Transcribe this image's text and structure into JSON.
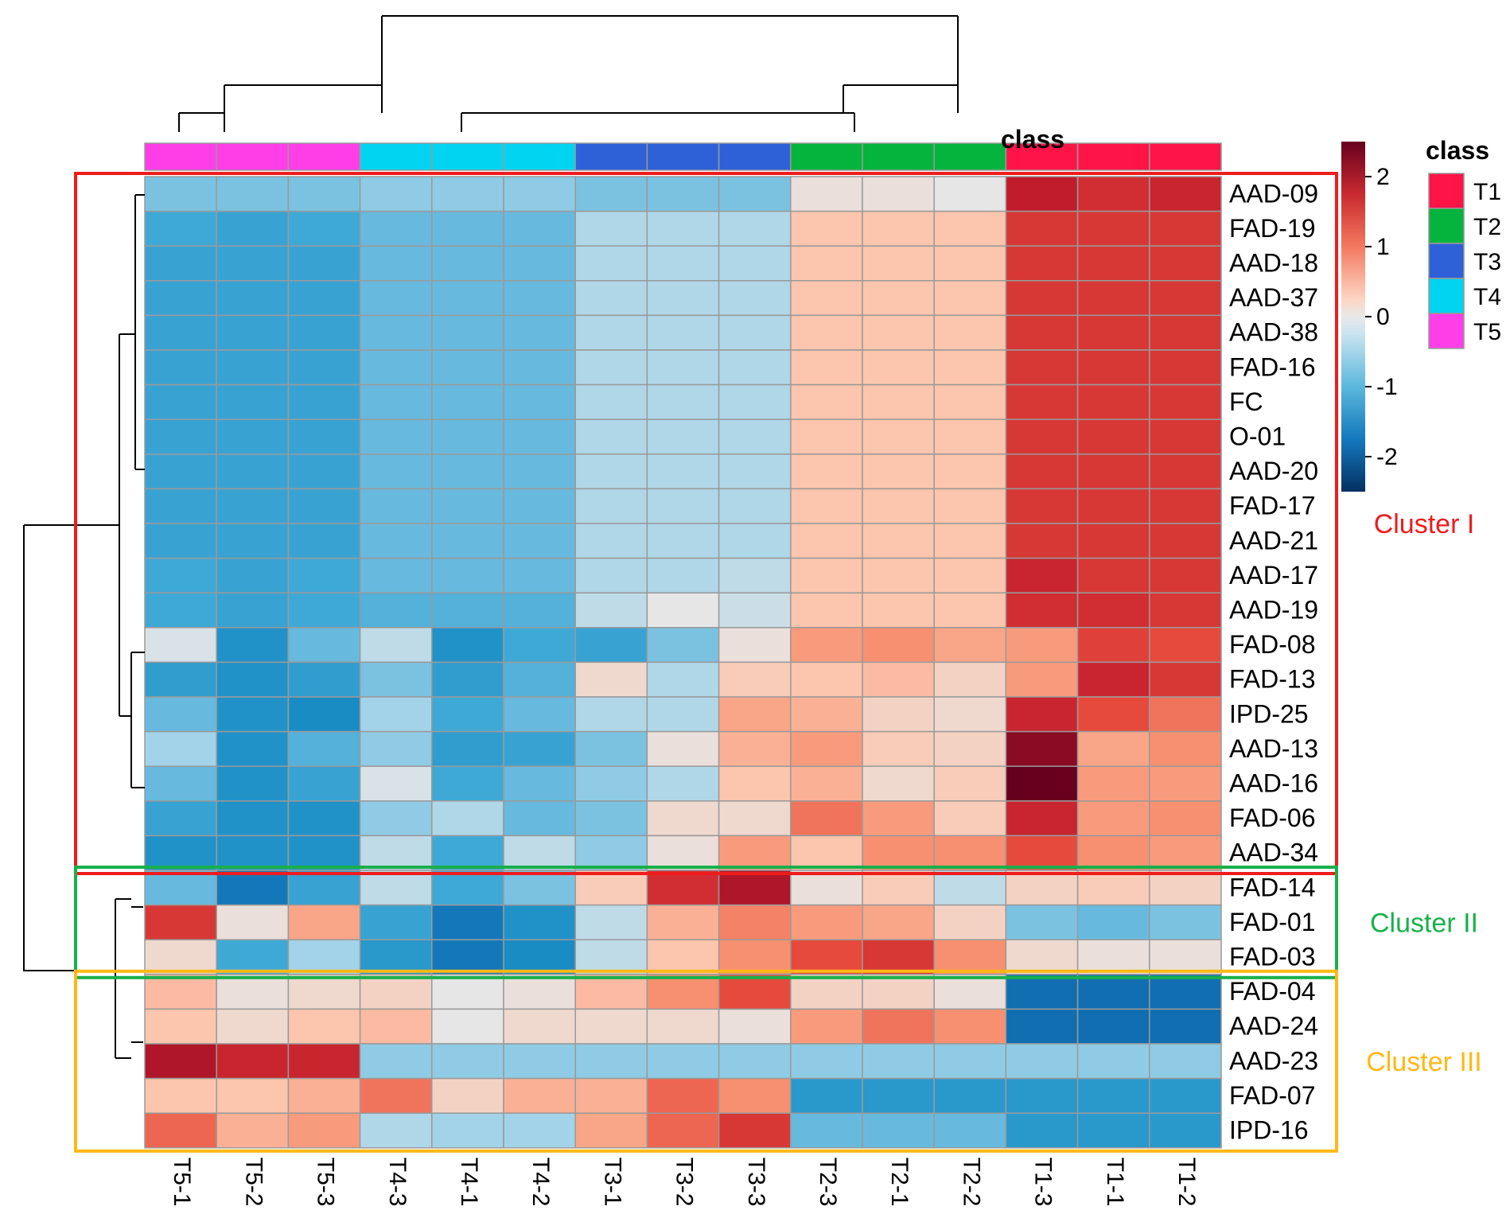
{
  "chart_data": {
    "type": "heatmap",
    "title": "",
    "class_header": "class",
    "columns": [
      "T5-1",
      "T5-2",
      "T5-3",
      "T4-3",
      "T4-1",
      "T4-2",
      "T3-1",
      "T3-2",
      "T3-3",
      "T2-3",
      "T2-1",
      "T2-2",
      "T1-3",
      "T1-1",
      "T1-2"
    ],
    "column_classes": [
      "T5",
      "T5",
      "T5",
      "T4",
      "T4",
      "T4",
      "T3",
      "T3",
      "T3",
      "T2",
      "T2",
      "T2",
      "T1",
      "T1",
      "T1"
    ],
    "rows": [
      "AAD-09",
      "FAD-19",
      "AAD-18",
      "AAD-37",
      "AAD-38",
      "FAD-16",
      "FC",
      "O-01",
      "AAD-20",
      "FAD-17",
      "AAD-21",
      "AAD-17",
      "AAD-19",
      "FAD-08",
      "FAD-13",
      "IPD-25",
      "AAD-13",
      "AAD-16",
      "FAD-06",
      "AAD-34",
      "FAD-14",
      "FAD-01",
      "FAD-03",
      "FAD-04",
      "AAD-24",
      "AAD-23",
      "FAD-07",
      "IPD-16"
    ],
    "values": [
      [
        -0.7,
        -0.7,
        -0.7,
        -0.6,
        -0.6,
        -0.6,
        -0.7,
        -0.7,
        -0.7,
        0.1,
        0.1,
        0.0,
        2.0,
        1.8,
        1.9
      ],
      [
        -1.0,
        -1.1,
        -1.0,
        -0.8,
        -0.8,
        -0.8,
        -0.4,
        -0.4,
        -0.4,
        0.5,
        0.5,
        0.5,
        1.7,
        1.7,
        1.7
      ],
      [
        -1.1,
        -1.1,
        -1.1,
        -0.8,
        -0.8,
        -0.8,
        -0.4,
        -0.4,
        -0.4,
        0.5,
        0.5,
        0.5,
        1.7,
        1.7,
        1.7
      ],
      [
        -1.1,
        -1.1,
        -1.1,
        -0.8,
        -0.8,
        -0.8,
        -0.4,
        -0.4,
        -0.4,
        0.5,
        0.5,
        0.5,
        1.7,
        1.7,
        1.7
      ],
      [
        -1.1,
        -1.1,
        -1.1,
        -0.8,
        -0.8,
        -0.8,
        -0.4,
        -0.4,
        -0.4,
        0.5,
        0.5,
        0.5,
        1.7,
        1.7,
        1.7
      ],
      [
        -1.1,
        -1.1,
        -1.1,
        -0.8,
        -0.8,
        -0.8,
        -0.4,
        -0.4,
        -0.4,
        0.5,
        0.5,
        0.5,
        1.7,
        1.7,
        1.7
      ],
      [
        -1.1,
        -1.1,
        -1.1,
        -0.8,
        -0.8,
        -0.8,
        -0.4,
        -0.4,
        -0.4,
        0.5,
        0.5,
        0.5,
        1.7,
        1.7,
        1.7
      ],
      [
        -1.1,
        -1.1,
        -1.1,
        -0.8,
        -0.8,
        -0.8,
        -0.4,
        -0.4,
        -0.4,
        0.5,
        0.5,
        0.5,
        1.7,
        1.7,
        1.7
      ],
      [
        -1.1,
        -1.1,
        -1.1,
        -0.8,
        -0.8,
        -0.8,
        -0.4,
        -0.4,
        -0.4,
        0.5,
        0.5,
        0.5,
        1.7,
        1.7,
        1.7
      ],
      [
        -1.1,
        -1.1,
        -1.1,
        -0.8,
        -0.8,
        -0.8,
        -0.4,
        -0.4,
        -0.4,
        0.5,
        0.5,
        0.5,
        1.7,
        1.7,
        1.7
      ],
      [
        -1.1,
        -1.1,
        -1.1,
        -0.8,
        -0.8,
        -0.8,
        -0.4,
        -0.4,
        -0.4,
        0.5,
        0.5,
        0.5,
        1.7,
        1.7,
        1.7
      ],
      [
        -1.0,
        -1.1,
        -1.0,
        -0.8,
        -0.8,
        -0.8,
        -0.4,
        -0.4,
        -0.3,
        0.5,
        0.5,
        0.5,
        1.9,
        1.7,
        1.7
      ],
      [
        -1.0,
        -1.1,
        -1.0,
        -0.9,
        -0.9,
        -0.9,
        -0.3,
        0.0,
        -0.2,
        0.5,
        0.5,
        0.5,
        1.8,
        1.8,
        1.7
      ],
      [
        -0.1,
        -1.4,
        -0.8,
        -0.3,
        -1.4,
        -1.0,
        -1.1,
        -0.7,
        0.1,
        0.9,
        1.0,
        0.8,
        0.9,
        1.6,
        1.5
      ],
      [
        -1.2,
        -1.4,
        -1.2,
        -0.7,
        -1.2,
        -0.9,
        0.2,
        -0.4,
        0.4,
        0.5,
        0.6,
        0.3,
        0.9,
        1.9,
        1.7
      ],
      [
        -0.8,
        -1.4,
        -1.5,
        -0.5,
        -1.0,
        -0.8,
        -0.4,
        -0.4,
        0.8,
        0.7,
        0.3,
        0.2,
        1.9,
        1.5,
        1.2
      ],
      [
        -0.5,
        -1.4,
        -0.9,
        -0.6,
        -1.2,
        -1.1,
        -0.7,
        0.1,
        0.7,
        0.9,
        0.4,
        0.3,
        2.3,
        0.8,
        1.0
      ],
      [
        -0.8,
        -1.4,
        -1.1,
        -0.1,
        -1.0,
        -0.8,
        -0.6,
        -0.4,
        0.5,
        0.7,
        0.2,
        0.4,
        2.5,
        0.9,
        0.9
      ],
      [
        -1.1,
        -1.4,
        -1.4,
        -0.6,
        -0.4,
        -0.8,
        -0.7,
        0.2,
        0.2,
        1.2,
        0.9,
        0.4,
        1.9,
        0.9,
        1.0
      ],
      [
        -1.4,
        -1.4,
        -1.4,
        -0.3,
        -1.0,
        -0.3,
        -0.6,
        0.1,
        0.9,
        0.5,
        1.0,
        1.0,
        1.5,
        1.0,
        0.9
      ],
      [
        -0.8,
        -1.7,
        -1.1,
        -0.3,
        -1.0,
        -0.7,
        0.4,
        1.8,
        2.1,
        0.1,
        0.4,
        -0.3,
        0.3,
        0.4,
        0.3
      ],
      [
        1.7,
        0.1,
        0.8,
        -1.1,
        -1.7,
        -1.4,
        -0.3,
        0.7,
        1.1,
        0.9,
        0.8,
        0.3,
        -0.7,
        -0.8,
        -0.7
      ],
      [
        0.2,
        -1.0,
        -0.5,
        -1.3,
        -1.7,
        -1.5,
        -0.3,
        0.5,
        1.0,
        1.5,
        1.7,
        1.0,
        0.2,
        0.1,
        0.1
      ],
      [
        0.6,
        0.1,
        0.2,
        0.3,
        0.0,
        0.1,
        0.6,
        1.0,
        1.5,
        0.3,
        0.3,
        0.1,
        -1.8,
        -1.8,
        -1.8
      ],
      [
        0.5,
        0.2,
        0.5,
        0.6,
        0.0,
        0.2,
        0.2,
        0.2,
        0.1,
        0.9,
        1.2,
        1.0,
        -1.8,
        -1.8,
        -1.8
      ],
      [
        2.1,
        1.9,
        1.9,
        -0.6,
        -0.6,
        -0.6,
        -0.6,
        -0.6,
        -0.6,
        -0.6,
        -0.6,
        -0.6,
        -0.6,
        -0.6,
        -0.6
      ],
      [
        0.5,
        0.5,
        0.7,
        1.2,
        0.3,
        0.7,
        0.7,
        1.3,
        1.0,
        -1.3,
        -1.3,
        -1.3,
        -1.3,
        -1.3,
        -1.3
      ],
      [
        1.3,
        0.7,
        0.9,
        -0.4,
        -0.5,
        -0.5,
        0.8,
        1.3,
        1.7,
        -0.8,
        -0.8,
        -0.8,
        -1.3,
        -1.3,
        -1.3
      ]
    ],
    "scale": {
      "min": -2.5,
      "max": 2.5,
      "ticks": [
        2,
        1,
        0,
        -1,
        -2
      ],
      "tick_labels": [
        "2",
        "1",
        "0",
        "-1",
        "-2"
      ]
    },
    "class_legend": {
      "title": "class",
      "items": [
        {
          "label": "T1",
          "color": "#ff1448"
        },
        {
          "label": "T2",
          "color": "#04b43c"
        },
        {
          "label": "T3",
          "color": "#2e60d8"
        },
        {
          "label": "T4",
          "color": "#00d4f0"
        },
        {
          "label": "T5",
          "color": "#ff3ee8"
        }
      ]
    },
    "clusters": [
      {
        "label": "Cluster I",
        "color": "#ee1c1c",
        "row_start": 0,
        "row_end": 19
      },
      {
        "label": "Cluster II",
        "color": "#18b04a",
        "row_start": 20,
        "row_end": 22
      },
      {
        "label": "Cluster III",
        "color": "#ffb814",
        "row_start": 23,
        "row_end": 27
      }
    ]
  }
}
